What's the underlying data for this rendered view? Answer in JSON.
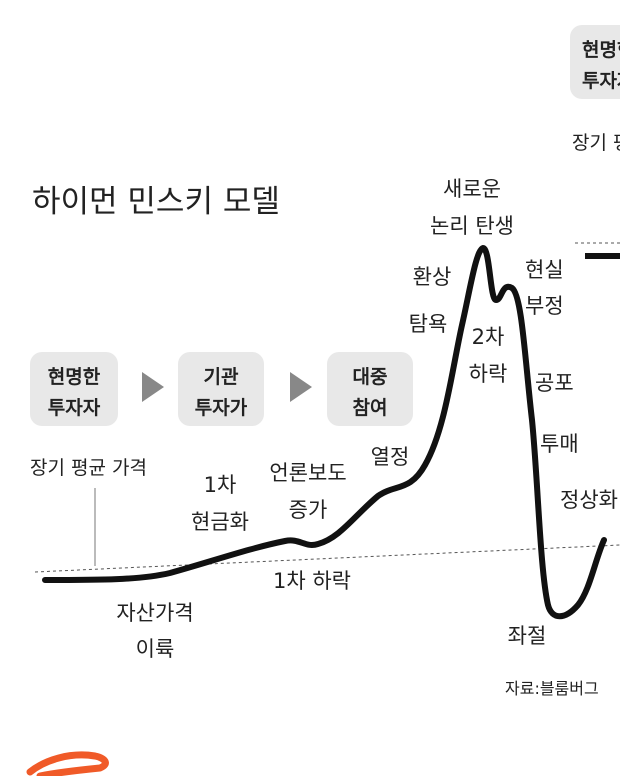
{
  "title": "하이먼 민스키 모델",
  "stages": [
    {
      "lines": [
        "현명한",
        "투자자"
      ]
    },
    {
      "lines": [
        "기관",
        "투자가"
      ]
    },
    {
      "lines": [
        "대중",
        "참여"
      ]
    },
    {
      "lines": [
        "현명한",
        "투자자"
      ]
    }
  ],
  "average_label": "장기 평균 가격",
  "average_label_right": "장기 평균 가격",
  "labels": [
    {
      "lines": [
        "자산가격",
        "이륙"
      ]
    },
    {
      "lines": [
        "1차",
        "현금화"
      ]
    },
    {
      "lines": [
        "언론보도",
        "증가"
      ]
    },
    {
      "lines": [
        "1차 하락"
      ]
    },
    {
      "lines": [
        "열정"
      ]
    },
    {
      "lines": [
        "탐욕"
      ]
    },
    {
      "lines": [
        "환상"
      ]
    },
    {
      "lines": [
        "새로운",
        "논리 탄생"
      ]
    },
    {
      "lines": [
        "2차",
        "하락"
      ]
    },
    {
      "lines": [
        "현실",
        "부정"
      ]
    },
    {
      "lines": [
        "공포"
      ]
    },
    {
      "lines": [
        "투매"
      ]
    },
    {
      "lines": [
        "정상화"
      ]
    },
    {
      "lines": [
        "좌절"
      ]
    }
  ],
  "source": "자료:블룸버그"
}
